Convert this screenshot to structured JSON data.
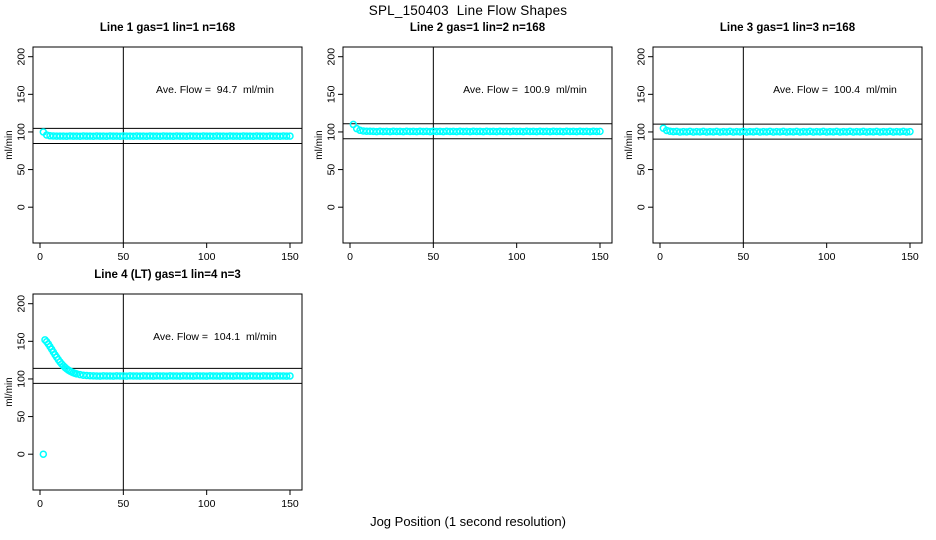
{
  "title": "SPL_150403  Line Flow Shapes",
  "xlabel": "Jog Position (1 second resolution)",
  "colors": {
    "points": "#00ffff",
    "axis": "#000000",
    "background": "#ffffff"
  },
  "chart_data": [
    {
      "type": "scatter",
      "title": "Line 1 gas=1 lin=1 n=168",
      "annotation": "Ave. Flow =  94.7  ml/min",
      "ave_flow": 94.7,
      "n": 168,
      "ylabel": "ml/min",
      "x_ticks": [
        0,
        50,
        100,
        150
      ],
      "y_ticks": [
        0,
        50,
        100,
        150,
        200
      ],
      "xlim": [
        0,
        150
      ],
      "ylim": [
        0,
        200
      ],
      "vline_x": 50,
      "ref_lines": [
        104.7,
        84.7
      ],
      "points": [
        [
          2,
          100
        ],
        [
          4,
          95.9
        ],
        [
          6,
          94.9
        ],
        [
          8,
          94.6
        ],
        [
          10,
          94.5
        ],
        [
          12,
          94.5
        ],
        [
          14,
          94.5
        ],
        [
          16,
          94.3
        ],
        [
          18,
          94.6
        ],
        [
          20,
          94.4
        ],
        [
          22,
          94.5
        ],
        [
          24,
          94.3
        ],
        [
          26,
          94.6
        ],
        [
          28,
          94.4
        ],
        [
          30,
          94.5
        ],
        [
          32,
          94.3
        ],
        [
          34,
          94.6
        ],
        [
          36,
          94.4
        ],
        [
          38,
          94.5
        ],
        [
          40,
          94.3
        ],
        [
          42,
          94.6
        ],
        [
          44,
          94.4
        ],
        [
          46,
          94.5
        ],
        [
          48,
          94.3
        ],
        [
          50,
          94.6
        ],
        [
          52,
          94.4
        ],
        [
          54,
          94.5
        ],
        [
          56,
          94.3
        ],
        [
          58,
          94.6
        ],
        [
          60,
          94.4
        ],
        [
          62,
          94.5
        ],
        [
          64,
          94.3
        ],
        [
          66,
          94.6
        ],
        [
          68,
          94.4
        ],
        [
          70,
          94.5
        ],
        [
          72,
          94.3
        ],
        [
          74,
          94.6
        ],
        [
          76,
          94.4
        ],
        [
          78,
          94.5
        ],
        [
          80,
          94.3
        ],
        [
          82,
          94.6
        ],
        [
          84,
          94.4
        ],
        [
          86,
          94.5
        ],
        [
          88,
          94.3
        ],
        [
          90,
          94.6
        ],
        [
          92,
          94.4
        ],
        [
          94,
          94.5
        ],
        [
          96,
          94.3
        ],
        [
          98,
          94.6
        ],
        [
          100,
          94.4
        ],
        [
          102,
          94.5
        ],
        [
          104,
          94.3
        ],
        [
          106,
          94.6
        ],
        [
          108,
          94.4
        ],
        [
          110,
          94.5
        ],
        [
          112,
          94.3
        ],
        [
          114,
          94.6
        ],
        [
          116,
          94.4
        ],
        [
          118,
          94.5
        ],
        [
          120,
          94.3
        ],
        [
          122,
          94.6
        ],
        [
          124,
          94.4
        ],
        [
          126,
          94.5
        ],
        [
          128,
          94.3
        ],
        [
          130,
          94.6
        ],
        [
          132,
          94.4
        ],
        [
          134,
          94.5
        ],
        [
          136,
          94.3
        ],
        [
          138,
          94.6
        ],
        [
          140,
          94.4
        ],
        [
          142,
          94.5
        ],
        [
          144,
          94.3
        ],
        [
          146,
          94.6
        ],
        [
          148,
          94.4
        ],
        [
          150,
          94.5
        ]
      ]
    },
    {
      "type": "scatter",
      "title": "Line 2 gas=1 lin=2 n=168",
      "annotation": "Ave. Flow =  100.9  ml/min",
      "ave_flow": 100.9,
      "n": 168,
      "ylabel": "ml/min",
      "x_ticks": [
        0,
        50,
        100,
        150
      ],
      "y_ticks": [
        0,
        50,
        100,
        150,
        200
      ],
      "xlim": [
        0,
        150
      ],
      "ylim": [
        0,
        200
      ],
      "vline_x": 50,
      "ref_lines": [
        110.9,
        90.9
      ],
      "points": [
        [
          2,
          110
        ],
        [
          4,
          104.5
        ],
        [
          6,
          102.2
        ],
        [
          8,
          101.3
        ],
        [
          10,
          101
        ],
        [
          12,
          100.9
        ],
        [
          14,
          100.8
        ],
        [
          16,
          100.5
        ],
        [
          18,
          101
        ],
        [
          20,
          100.6
        ],
        [
          22,
          100.8
        ],
        [
          24,
          100.5
        ],
        [
          26,
          101
        ],
        [
          28,
          100.6
        ],
        [
          30,
          100.8
        ],
        [
          32,
          100.5
        ],
        [
          34,
          101
        ],
        [
          36,
          100.6
        ],
        [
          38,
          100.8
        ],
        [
          40,
          100.5
        ],
        [
          42,
          101
        ],
        [
          44,
          100.6
        ],
        [
          46,
          100.8
        ],
        [
          48,
          100.5
        ],
        [
          50,
          101
        ],
        [
          52,
          100.6
        ],
        [
          54,
          100.8
        ],
        [
          56,
          100.5
        ],
        [
          58,
          101
        ],
        [
          60,
          100.6
        ],
        [
          62,
          100.8
        ],
        [
          64,
          100.5
        ],
        [
          66,
          101
        ],
        [
          68,
          100.6
        ],
        [
          70,
          100.8
        ],
        [
          72,
          100.5
        ],
        [
          74,
          101
        ],
        [
          76,
          100.6
        ],
        [
          78,
          100.8
        ],
        [
          80,
          100.5
        ],
        [
          82,
          101
        ],
        [
          84,
          100.6
        ],
        [
          86,
          100.8
        ],
        [
          88,
          100.5
        ],
        [
          90,
          101
        ],
        [
          92,
          100.6
        ],
        [
          94,
          100.8
        ],
        [
          96,
          100.5
        ],
        [
          98,
          101
        ],
        [
          100,
          100.6
        ],
        [
          102,
          100.8
        ],
        [
          104,
          100.5
        ],
        [
          106,
          101
        ],
        [
          108,
          100.6
        ],
        [
          110,
          100.8
        ],
        [
          112,
          100.5
        ],
        [
          114,
          101
        ],
        [
          116,
          100.6
        ],
        [
          118,
          100.8
        ],
        [
          120,
          100.5
        ],
        [
          122,
          101
        ],
        [
          124,
          100.6
        ],
        [
          126,
          100.8
        ],
        [
          128,
          100.5
        ],
        [
          130,
          101
        ],
        [
          132,
          100.6
        ],
        [
          134,
          100.8
        ],
        [
          136,
          100.5
        ],
        [
          138,
          101
        ],
        [
          140,
          100.6
        ],
        [
          142,
          100.8
        ],
        [
          144,
          100.5
        ],
        [
          146,
          101
        ],
        [
          148,
          100.6
        ],
        [
          150,
          100.8
        ]
      ]
    },
    {
      "type": "scatter",
      "title": "Line 3 gas=1 lin=3 n=168",
      "annotation": "Ave. Flow =  100.4  ml/min",
      "ave_flow": 100.4,
      "n": 168,
      "ylabel": "ml/min",
      "x_ticks": [
        0,
        50,
        100,
        150
      ],
      "y_ticks": [
        0,
        50,
        100,
        150,
        200
      ],
      "xlim": [
        0,
        150
      ],
      "ylim": [
        0,
        200
      ],
      "vline_x": 50,
      "ref_lines": [
        110.4,
        90.4
      ],
      "points": [
        [
          2,
          105
        ],
        [
          4,
          102
        ],
        [
          6,
          100.9
        ],
        [
          8,
          100.5
        ],
        [
          10,
          100.7
        ],
        [
          12,
          99.9
        ],
        [
          14,
          100.5
        ],
        [
          16,
          100.1
        ],
        [
          18,
          100.7
        ],
        [
          20,
          99.9
        ],
        [
          22,
          100.5
        ],
        [
          24,
          100.1
        ],
        [
          26,
          100.7
        ],
        [
          28,
          99.9
        ],
        [
          30,
          100.5
        ],
        [
          32,
          100.1
        ],
        [
          34,
          100.7
        ],
        [
          36,
          99.9
        ],
        [
          38,
          100.5
        ],
        [
          40,
          100.1
        ],
        [
          42,
          100.7
        ],
        [
          44,
          99.9
        ],
        [
          46,
          100.5
        ],
        [
          48,
          100.1
        ],
        [
          50,
          100.7
        ],
        [
          52,
          99.9
        ],
        [
          54,
          100.5
        ],
        [
          56,
          100.1
        ],
        [
          58,
          100.7
        ],
        [
          60,
          99.9
        ],
        [
          62,
          100.5
        ],
        [
          64,
          100.1
        ],
        [
          66,
          100.7
        ],
        [
          68,
          99.9
        ],
        [
          70,
          100.5
        ],
        [
          72,
          100.1
        ],
        [
          74,
          100.7
        ],
        [
          76,
          99.9
        ],
        [
          78,
          100.5
        ],
        [
          80,
          100.1
        ],
        [
          82,
          100.7
        ],
        [
          84,
          99.9
        ],
        [
          86,
          100.5
        ],
        [
          88,
          100.1
        ],
        [
          90,
          100.7
        ],
        [
          92,
          99.9
        ],
        [
          94,
          100.5
        ],
        [
          96,
          100.1
        ],
        [
          98,
          100.7
        ],
        [
          100,
          99.9
        ],
        [
          102,
          100.5
        ],
        [
          104,
          100.1
        ],
        [
          106,
          100.7
        ],
        [
          108,
          99.9
        ],
        [
          110,
          100.5
        ],
        [
          112,
          100.1
        ],
        [
          114,
          100.7
        ],
        [
          116,
          99.9
        ],
        [
          118,
          100.5
        ],
        [
          120,
          100.1
        ],
        [
          122,
          100.7
        ],
        [
          124,
          99.9
        ],
        [
          126,
          100.5
        ],
        [
          128,
          100.1
        ],
        [
          130,
          100.7
        ],
        [
          132,
          99.9
        ],
        [
          134,
          100.5
        ],
        [
          136,
          100.1
        ],
        [
          138,
          100.7
        ],
        [
          140,
          99.9
        ],
        [
          142,
          100.5
        ],
        [
          144,
          100.1
        ],
        [
          146,
          100.7
        ],
        [
          148,
          99.9
        ],
        [
          150,
          100.5
        ]
      ]
    },
    {
      "type": "scatter",
      "title": "Line 4 (LT) gas=1 lin=4 n=3",
      "annotation": "Ave. Flow =  104.1  ml/min",
      "ave_flow": 104.1,
      "n": 3,
      "ylabel": "ml/min",
      "x_ticks": [
        0,
        50,
        100,
        150
      ],
      "y_ticks": [
        0,
        50,
        100,
        150,
        200
      ],
      "xlim": [
        0,
        150
      ],
      "ylim": [
        0,
        200
      ],
      "vline_x": 50,
      "ref_lines": [
        114.1,
        94.1
      ],
      "points": [
        [
          2,
          0
        ],
        [
          3,
          152
        ],
        [
          4,
          149.5
        ],
        [
          5,
          146.5
        ],
        [
          6,
          143
        ],
        [
          7,
          139.5
        ],
        [
          8,
          135.8
        ],
        [
          9,
          132.2
        ],
        [
          10,
          128.8
        ],
        [
          11,
          125.6
        ],
        [
          12,
          122.6
        ],
        [
          13,
          119.9
        ],
        [
          14,
          117.5
        ],
        [
          15,
          115.3
        ],
        [
          16,
          113.4
        ],
        [
          17,
          111.8
        ],
        [
          18,
          110.4
        ],
        [
          19,
          109.2
        ],
        [
          20,
          108.2
        ],
        [
          21,
          107.4
        ],
        [
          22,
          106.7
        ],
        [
          24,
          105.7
        ],
        [
          26,
          105
        ],
        [
          28,
          104.6
        ],
        [
          30,
          104.3
        ],
        [
          32,
          104.1
        ],
        [
          34,
          104
        ],
        [
          36,
          103.8
        ],
        [
          38,
          104.1
        ],
        [
          40,
          103.9
        ],
        [
          42,
          104
        ],
        [
          44,
          103.8
        ],
        [
          46,
          104.1
        ],
        [
          48,
          103.9
        ],
        [
          50,
          104
        ],
        [
          52,
          103.8
        ],
        [
          54,
          104.1
        ],
        [
          56,
          103.9
        ],
        [
          58,
          104
        ],
        [
          60,
          103.8
        ],
        [
          62,
          104.1
        ],
        [
          64,
          103.9
        ],
        [
          66,
          104
        ],
        [
          68,
          103.8
        ],
        [
          70,
          104.1
        ],
        [
          72,
          103.9
        ],
        [
          74,
          104
        ],
        [
          76,
          103.8
        ],
        [
          78,
          104.1
        ],
        [
          80,
          103.9
        ],
        [
          82,
          104
        ],
        [
          84,
          103.8
        ],
        [
          86,
          104.1
        ],
        [
          88,
          103.9
        ],
        [
          90,
          104
        ],
        [
          92,
          103.8
        ],
        [
          94,
          104.1
        ],
        [
          96,
          103.9
        ],
        [
          98,
          104
        ],
        [
          100,
          103.8
        ],
        [
          102,
          104.1
        ],
        [
          104,
          103.9
        ],
        [
          106,
          104
        ],
        [
          108,
          103.8
        ],
        [
          110,
          104.1
        ],
        [
          112,
          103.9
        ],
        [
          114,
          104
        ],
        [
          116,
          103.8
        ],
        [
          118,
          104.1
        ],
        [
          120,
          103.9
        ],
        [
          122,
          104
        ],
        [
          124,
          103.8
        ],
        [
          126,
          104.1
        ],
        [
          128,
          103.9
        ],
        [
          130,
          104
        ],
        [
          132,
          103.8
        ],
        [
          134,
          104.1
        ],
        [
          136,
          103.9
        ],
        [
          138,
          104
        ],
        [
          140,
          103.8
        ],
        [
          142,
          104.1
        ],
        [
          144,
          103.9
        ],
        [
          146,
          104
        ],
        [
          148,
          103.8
        ],
        [
          150,
          104
        ]
      ]
    }
  ]
}
